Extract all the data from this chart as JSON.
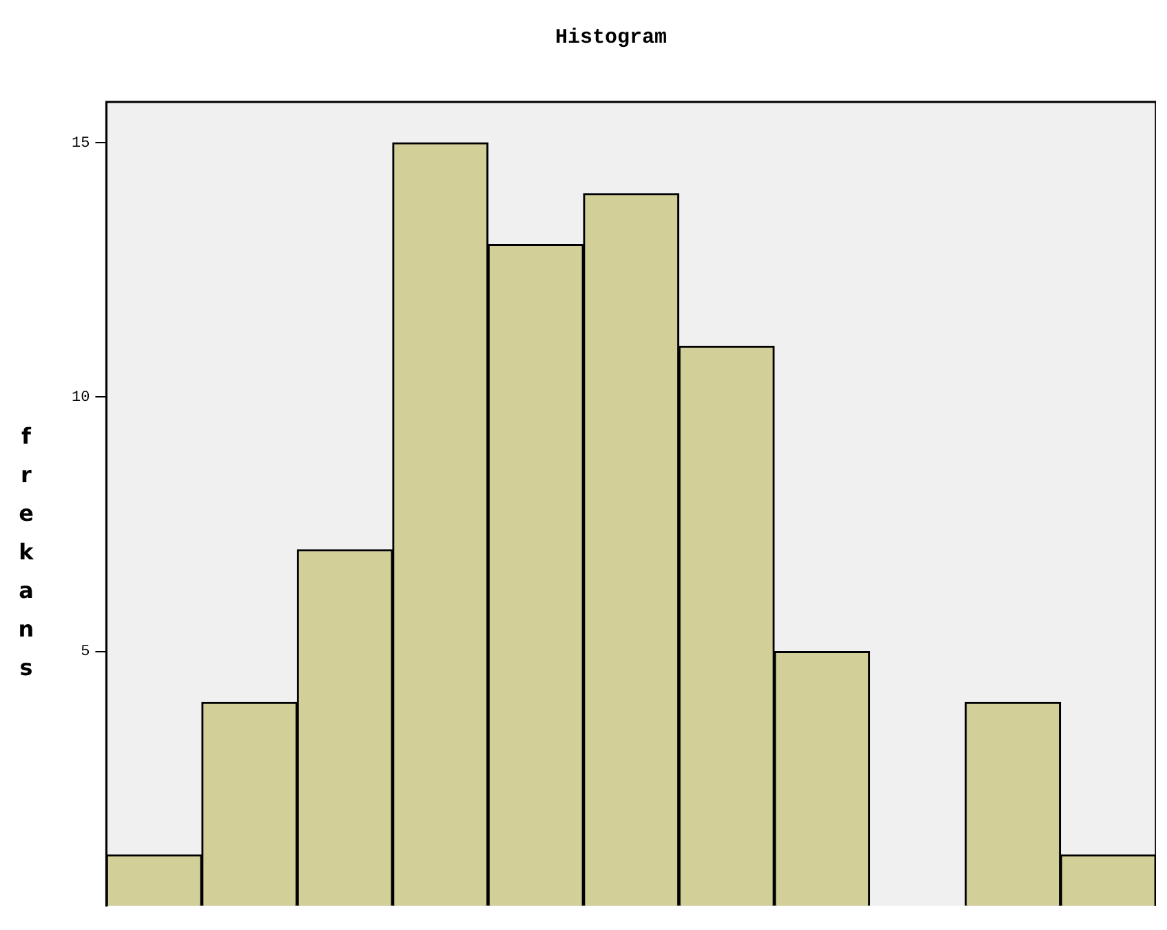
{
  "chart_data": {
    "type": "bar",
    "title": "Histogram",
    "ylabel": "frekans",
    "categories": [
      null,
      null,
      null,
      null,
      null,
      null,
      null,
      null,
      null,
      null,
      null
    ],
    "values": [
      1,
      4,
      7,
      15,
      13,
      14,
      11,
      5,
      0,
      4,
      1
    ],
    "color": "#d3cf98",
    "ylim": [
      0,
      15.8
    ],
    "yticks": [
      5,
      10,
      15
    ],
    "tick_labels": "y",
    "grid": false,
    "legend": false
  }
}
